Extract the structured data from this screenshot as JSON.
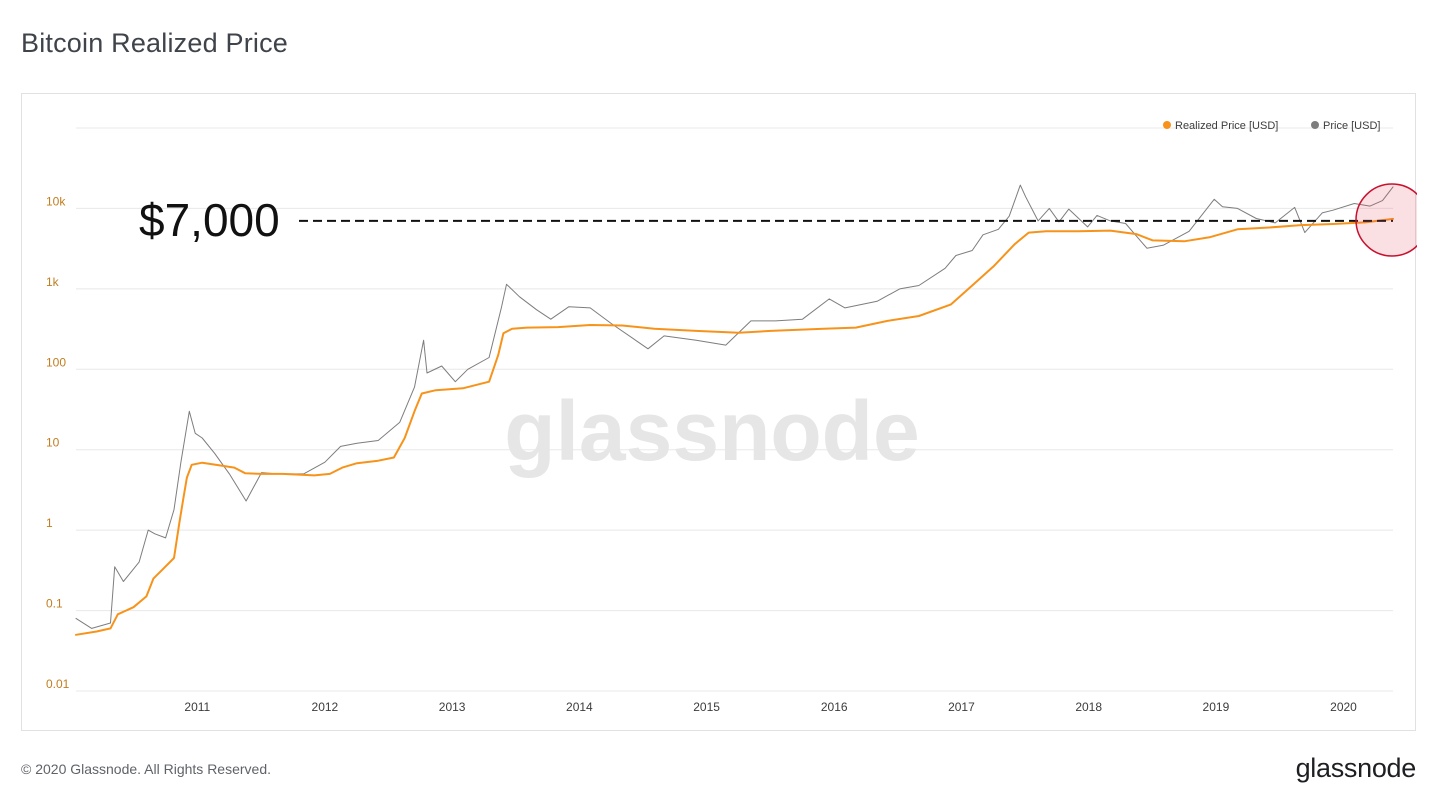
{
  "header": {
    "title": "Bitcoin Realized Price"
  },
  "footer": {
    "copyright": "© 2020 Glassnode. All Rights Reserved.",
    "logo_text": "glassnode"
  },
  "watermark": "glassnode",
  "annotation": {
    "label": "$7,000",
    "value": 7000,
    "highlight_color": "#c8102e"
  },
  "colors": {
    "realized": "#f7931a",
    "price": "#7d7d7d",
    "grid": "#e8e8e8",
    "axis_text": "#c27d1f",
    "x_text": "#3c3c3c"
  },
  "legend": [
    {
      "name": "Realized Price [USD]",
      "color": "#f7931a"
    },
    {
      "name": "Price [USD]",
      "color": "#7d7d7d"
    }
  ],
  "chart_data": {
    "type": "line",
    "title": "Bitcoin Realized Price",
    "xlabel": "",
    "ylabel": "",
    "y_scale": "log",
    "ylim": [
      0.01,
      100000
    ],
    "xlim": [
      "2010-07-18",
      "2020-11-20"
    ],
    "grid": true,
    "legend_position": "top-right",
    "y_ticks": [
      {
        "value": 0.01,
        "label": "0.01"
      },
      {
        "value": 0.1,
        "label": "0.1"
      },
      {
        "value": 1,
        "label": "1"
      },
      {
        "value": 10,
        "label": "10"
      },
      {
        "value": 100,
        "label": "100"
      },
      {
        "value": 1000,
        "label": "1k"
      },
      {
        "value": 10000,
        "label": "10k"
      }
    ],
    "x_ticks": [
      "2011",
      "2012",
      "2013",
      "2014",
      "2015",
      "2016",
      "2017",
      "2018",
      "2019",
      "2020"
    ],
    "series": [
      {
        "name": "Realized Price [USD]",
        "color": "#f7931a",
        "points": [
          [
            "2010-07-18",
            0.05
          ],
          [
            "2010-09-15",
            0.055
          ],
          [
            "2010-10-25",
            0.06
          ],
          [
            "2010-11-15",
            0.09
          ],
          [
            "2010-12-30",
            0.11
          ],
          [
            "2011-02-05",
            0.15
          ],
          [
            "2011-02-25",
            0.25
          ],
          [
            "2011-03-25",
            0.33
          ],
          [
            "2011-04-25",
            0.45
          ],
          [
            "2011-05-10",
            1.2
          ],
          [
            "2011-05-22",
            2.5
          ],
          [
            "2011-06-01",
            4.5
          ],
          [
            "2011-06-15",
            6.5
          ],
          [
            "2011-07-15",
            6.9
          ],
          [
            "2011-09-01",
            6.4
          ],
          [
            "2011-10-15",
            6.0
          ],
          [
            "2011-11-15",
            5.1
          ],
          [
            "2012-01-01",
            5.0
          ],
          [
            "2012-03-01",
            5.0
          ],
          [
            "2012-06-01",
            4.8
          ],
          [
            "2012-07-15",
            5.0
          ],
          [
            "2012-08-20",
            6.0
          ],
          [
            "2012-10-01",
            6.8
          ],
          [
            "2012-12-01",
            7.3
          ],
          [
            "2013-01-15",
            8.0
          ],
          [
            "2013-02-15",
            14
          ],
          [
            "2013-03-15",
            30
          ],
          [
            "2013-04-05",
            50
          ],
          [
            "2013-05-15",
            55
          ],
          [
            "2013-08-01",
            58
          ],
          [
            "2013-10-15",
            70
          ],
          [
            "2013-11-10",
            150
          ],
          [
            "2013-11-25",
            280
          ],
          [
            "2013-12-20",
            320
          ],
          [
            "2014-02-01",
            330
          ],
          [
            "2014-05-01",
            335
          ],
          [
            "2014-08-01",
            355
          ],
          [
            "2014-11-01",
            350
          ],
          [
            "2015-02-01",
            320
          ],
          [
            "2015-06-01",
            300
          ],
          [
            "2015-10-01",
            285
          ],
          [
            "2016-01-01",
            300
          ],
          [
            "2016-06-01",
            320
          ],
          [
            "2016-09-01",
            330
          ],
          [
            "2016-12-01",
            400
          ],
          [
            "2017-03-01",
            460
          ],
          [
            "2017-06-01",
            640
          ],
          [
            "2017-08-01",
            1100
          ],
          [
            "2017-10-01",
            1900
          ],
          [
            "2017-12-01",
            3600
          ],
          [
            "2018-01-10",
            5000
          ],
          [
            "2018-03-01",
            5200
          ],
          [
            "2018-06-01",
            5200
          ],
          [
            "2018-09-01",
            5300
          ],
          [
            "2018-11-15",
            4800
          ],
          [
            "2019-01-01",
            4000
          ],
          [
            "2019-04-01",
            3900
          ],
          [
            "2019-06-15",
            4400
          ],
          [
            "2019-09-01",
            5500
          ],
          [
            "2019-12-01",
            5800
          ],
          [
            "2020-03-01",
            6200
          ],
          [
            "2020-06-01",
            6400
          ],
          [
            "2020-09-01",
            6700
          ],
          [
            "2020-11-20",
            7400
          ]
        ]
      },
      {
        "name": "Price [USD]",
        "color": "#7d7d7d",
        "points": [
          [
            "2010-07-18",
            0.08
          ],
          [
            "2010-09-01",
            0.06
          ],
          [
            "2010-10-25",
            0.07
          ],
          [
            "2010-11-06",
            0.35
          ],
          [
            "2010-12-01",
            0.23
          ],
          [
            "2011-01-15",
            0.4
          ],
          [
            "2011-02-10",
            1.0
          ],
          [
            "2011-03-01",
            0.9
          ],
          [
            "2011-04-01",
            0.8
          ],
          [
            "2011-04-25",
            1.8
          ],
          [
            "2011-05-15",
            7
          ],
          [
            "2011-06-08",
            30
          ],
          [
            "2011-06-25",
            16
          ],
          [
            "2011-07-15",
            14
          ],
          [
            "2011-08-20",
            9
          ],
          [
            "2011-10-01",
            5
          ],
          [
            "2011-11-18",
            2.3
          ],
          [
            "2012-01-01",
            5.2
          ],
          [
            "2012-02-15",
            5.0
          ],
          [
            "2012-05-01",
            5.0
          ],
          [
            "2012-07-01",
            7
          ],
          [
            "2012-08-15",
            11
          ],
          [
            "2012-10-01",
            12
          ],
          [
            "2012-12-01",
            13
          ],
          [
            "2013-02-01",
            22
          ],
          [
            "2013-03-15",
            60
          ],
          [
            "2013-04-10",
            230
          ],
          [
            "2013-04-20",
            90
          ],
          [
            "2013-06-01",
            110
          ],
          [
            "2013-07-10",
            70
          ],
          [
            "2013-08-15",
            100
          ],
          [
            "2013-10-15",
            140
          ],
          [
            "2013-11-20",
            600
          ],
          [
            "2013-12-04",
            1140
          ],
          [
            "2014-01-10",
            800
          ],
          [
            "2014-02-28",
            550
          ],
          [
            "2014-04-10",
            420
          ],
          [
            "2014-06-01",
            600
          ],
          [
            "2014-08-01",
            580
          ],
          [
            "2014-10-01",
            370
          ],
          [
            "2015-01-14",
            180
          ],
          [
            "2015-03-01",
            260
          ],
          [
            "2015-06-01",
            230
          ],
          [
            "2015-08-25",
            200
          ],
          [
            "2015-11-05",
            400
          ],
          [
            "2016-01-15",
            400
          ],
          [
            "2016-04-01",
            420
          ],
          [
            "2016-06-17",
            750
          ],
          [
            "2016-08-01",
            580
          ],
          [
            "2016-11-01",
            700
          ],
          [
            "2017-01-05",
            1000
          ],
          [
            "2017-03-01",
            1100
          ],
          [
            "2017-05-15",
            1800
          ],
          [
            "2017-06-15",
            2600
          ],
          [
            "2017-08-01",
            3000
          ],
          [
            "2017-09-01",
            4700
          ],
          [
            "2017-10-15",
            5500
          ],
          [
            "2017-11-15",
            8000
          ],
          [
            "2017-12-17",
            19500
          ],
          [
            "2018-01-01",
            14000
          ],
          [
            "2018-02-06",
            7000
          ],
          [
            "2018-03-10",
            10000
          ],
          [
            "2018-04-07",
            6800
          ],
          [
            "2018-05-05",
            9800
          ],
          [
            "2018-06-28",
            5900
          ],
          [
            "2018-07-25",
            8200
          ],
          [
            "2018-09-01",
            7000
          ],
          [
            "2018-10-15",
            6500
          ],
          [
            "2018-12-15",
            3200
          ],
          [
            "2019-02-01",
            3500
          ],
          [
            "2019-04-15",
            5200
          ],
          [
            "2019-06-26",
            13000
          ],
          [
            "2019-07-20",
            10500
          ],
          [
            "2019-09-01",
            10000
          ],
          [
            "2019-10-25",
            7500
          ],
          [
            "2019-12-18",
            6600
          ],
          [
            "2020-02-12",
            10300
          ],
          [
            "2020-03-12",
            5000
          ],
          [
            "2020-05-01",
            8800
          ],
          [
            "2020-06-01",
            9500
          ],
          [
            "2020-08-01",
            11500
          ],
          [
            "2020-09-15",
            10700
          ],
          [
            "2020-10-21",
            12500
          ],
          [
            "2020-11-20",
            18500
          ]
        ]
      }
    ]
  }
}
